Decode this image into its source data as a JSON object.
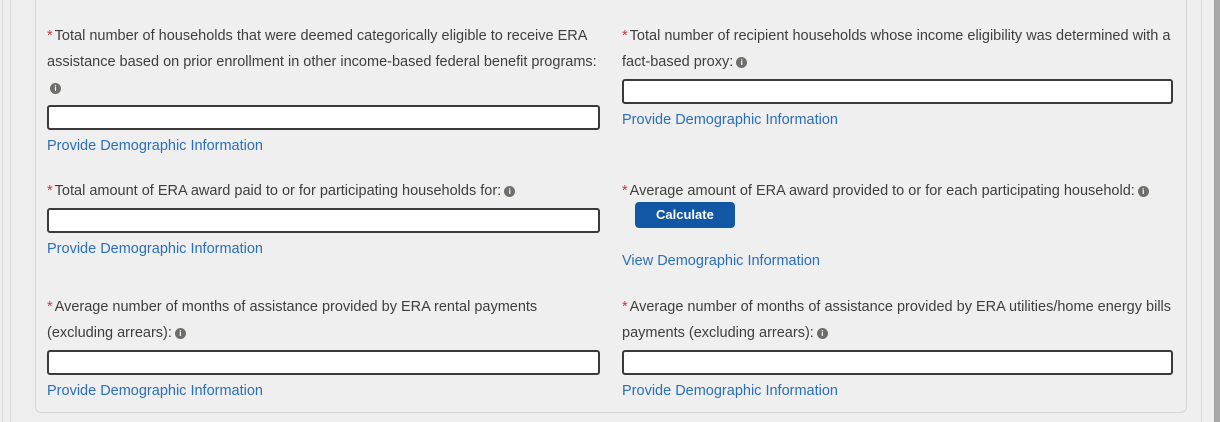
{
  "colors": {
    "page_background": "#efefef",
    "link_blue": "#2a6fba",
    "button_blue": "#1157a5",
    "required_red": "#c23944",
    "label_text": "#3e3e3c",
    "info_icon_gray": "#6f6e6b"
  },
  "misc": {
    "required_marker": "*"
  },
  "icons": {
    "info_glyph": "i"
  },
  "form": {
    "fields": [
      {
        "name": "total-households-categorically-eligible",
        "label": "Total number of households that were deemed categorically eligible to receive ERA assistance based on prior enrollment in other income-based federal benefit programs:",
        "required": true,
        "input_value": "",
        "link_label": "Provide Demographic Information"
      },
      {
        "name": "total-recipient-households-fact-based-proxy",
        "label": "Total number of recipient households whose income eligibility was determined with a fact-based proxy:",
        "required": true,
        "input_value": "",
        "link_label": "Provide Demographic Information"
      },
      {
        "name": "total-amount-era-award-paid",
        "label": "Total amount of ERA award paid to or for participating households for:",
        "required": true,
        "input_value": "",
        "link_label": "Provide Demographic Information"
      },
      {
        "name": "average-amount-era-award",
        "label": "Average amount of ERA award provided to or for each participating household:",
        "required": true,
        "button_label": "Calculate",
        "link_label": "View Demographic Information"
      },
      {
        "name": "avg-months-era-rental-payments",
        "label": "Average number of months of assistance provided by ERA rental payments (excluding arrears):",
        "required": true,
        "input_value": "",
        "link_label": "Provide Demographic Information"
      },
      {
        "name": "avg-months-era-utilities-payments",
        "label": "Average number of months of assistance provided by ERA utilities/home energy bills payments (excluding arrears):",
        "required": true,
        "input_value": "",
        "link_label": "Provide Demographic Information"
      }
    ]
  }
}
